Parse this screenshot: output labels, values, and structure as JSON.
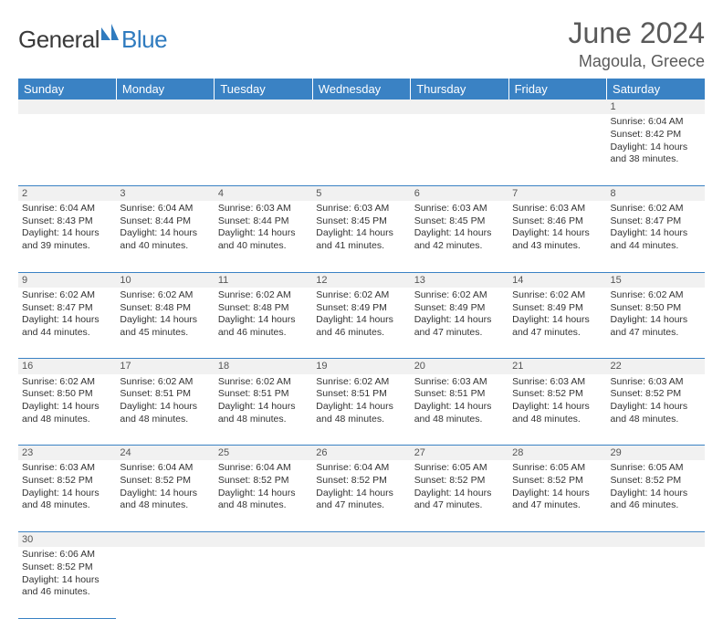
{
  "brand": {
    "part1": "General",
    "part2": "Blue"
  },
  "title": "June 2024",
  "location": "Magoula, Greece",
  "colors": {
    "header_bg": "#3a82c4",
    "header_text": "#ffffff",
    "daynum_bg": "#f1f1f1",
    "border": "#3a82c4",
    "title_color": "#5a5a5a",
    "logo_blue": "#2f7bbf"
  },
  "weekdays": [
    "Sunday",
    "Monday",
    "Tuesday",
    "Wednesday",
    "Thursday",
    "Friday",
    "Saturday"
  ],
  "weeks": [
    [
      null,
      null,
      null,
      null,
      null,
      null,
      {
        "d": "1",
        "sr": "Sunrise: 6:04 AM",
        "ss": "Sunset: 8:42 PM",
        "dl1": "Daylight: 14 hours",
        "dl2": "and 38 minutes."
      }
    ],
    [
      {
        "d": "2",
        "sr": "Sunrise: 6:04 AM",
        "ss": "Sunset: 8:43 PM",
        "dl1": "Daylight: 14 hours",
        "dl2": "and 39 minutes."
      },
      {
        "d": "3",
        "sr": "Sunrise: 6:04 AM",
        "ss": "Sunset: 8:44 PM",
        "dl1": "Daylight: 14 hours",
        "dl2": "and 40 minutes."
      },
      {
        "d": "4",
        "sr": "Sunrise: 6:03 AM",
        "ss": "Sunset: 8:44 PM",
        "dl1": "Daylight: 14 hours",
        "dl2": "and 40 minutes."
      },
      {
        "d": "5",
        "sr": "Sunrise: 6:03 AM",
        "ss": "Sunset: 8:45 PM",
        "dl1": "Daylight: 14 hours",
        "dl2": "and 41 minutes."
      },
      {
        "d": "6",
        "sr": "Sunrise: 6:03 AM",
        "ss": "Sunset: 8:45 PM",
        "dl1": "Daylight: 14 hours",
        "dl2": "and 42 minutes."
      },
      {
        "d": "7",
        "sr": "Sunrise: 6:03 AM",
        "ss": "Sunset: 8:46 PM",
        "dl1": "Daylight: 14 hours",
        "dl2": "and 43 minutes."
      },
      {
        "d": "8",
        "sr": "Sunrise: 6:02 AM",
        "ss": "Sunset: 8:47 PM",
        "dl1": "Daylight: 14 hours",
        "dl2": "and 44 minutes."
      }
    ],
    [
      {
        "d": "9",
        "sr": "Sunrise: 6:02 AM",
        "ss": "Sunset: 8:47 PM",
        "dl1": "Daylight: 14 hours",
        "dl2": "and 44 minutes."
      },
      {
        "d": "10",
        "sr": "Sunrise: 6:02 AM",
        "ss": "Sunset: 8:48 PM",
        "dl1": "Daylight: 14 hours",
        "dl2": "and 45 minutes."
      },
      {
        "d": "11",
        "sr": "Sunrise: 6:02 AM",
        "ss": "Sunset: 8:48 PM",
        "dl1": "Daylight: 14 hours",
        "dl2": "and 46 minutes."
      },
      {
        "d": "12",
        "sr": "Sunrise: 6:02 AM",
        "ss": "Sunset: 8:49 PM",
        "dl1": "Daylight: 14 hours",
        "dl2": "and 46 minutes."
      },
      {
        "d": "13",
        "sr": "Sunrise: 6:02 AM",
        "ss": "Sunset: 8:49 PM",
        "dl1": "Daylight: 14 hours",
        "dl2": "and 47 minutes."
      },
      {
        "d": "14",
        "sr": "Sunrise: 6:02 AM",
        "ss": "Sunset: 8:49 PM",
        "dl1": "Daylight: 14 hours",
        "dl2": "and 47 minutes."
      },
      {
        "d": "15",
        "sr": "Sunrise: 6:02 AM",
        "ss": "Sunset: 8:50 PM",
        "dl1": "Daylight: 14 hours",
        "dl2": "and 47 minutes."
      }
    ],
    [
      {
        "d": "16",
        "sr": "Sunrise: 6:02 AM",
        "ss": "Sunset: 8:50 PM",
        "dl1": "Daylight: 14 hours",
        "dl2": "and 48 minutes."
      },
      {
        "d": "17",
        "sr": "Sunrise: 6:02 AM",
        "ss": "Sunset: 8:51 PM",
        "dl1": "Daylight: 14 hours",
        "dl2": "and 48 minutes."
      },
      {
        "d": "18",
        "sr": "Sunrise: 6:02 AM",
        "ss": "Sunset: 8:51 PM",
        "dl1": "Daylight: 14 hours",
        "dl2": "and 48 minutes."
      },
      {
        "d": "19",
        "sr": "Sunrise: 6:02 AM",
        "ss": "Sunset: 8:51 PM",
        "dl1": "Daylight: 14 hours",
        "dl2": "and 48 minutes."
      },
      {
        "d": "20",
        "sr": "Sunrise: 6:03 AM",
        "ss": "Sunset: 8:51 PM",
        "dl1": "Daylight: 14 hours",
        "dl2": "and 48 minutes."
      },
      {
        "d": "21",
        "sr": "Sunrise: 6:03 AM",
        "ss": "Sunset: 8:52 PM",
        "dl1": "Daylight: 14 hours",
        "dl2": "and 48 minutes."
      },
      {
        "d": "22",
        "sr": "Sunrise: 6:03 AM",
        "ss": "Sunset: 8:52 PM",
        "dl1": "Daylight: 14 hours",
        "dl2": "and 48 minutes."
      }
    ],
    [
      {
        "d": "23",
        "sr": "Sunrise: 6:03 AM",
        "ss": "Sunset: 8:52 PM",
        "dl1": "Daylight: 14 hours",
        "dl2": "and 48 minutes."
      },
      {
        "d": "24",
        "sr": "Sunrise: 6:04 AM",
        "ss": "Sunset: 8:52 PM",
        "dl1": "Daylight: 14 hours",
        "dl2": "and 48 minutes."
      },
      {
        "d": "25",
        "sr": "Sunrise: 6:04 AM",
        "ss": "Sunset: 8:52 PM",
        "dl1": "Daylight: 14 hours",
        "dl2": "and 48 minutes."
      },
      {
        "d": "26",
        "sr": "Sunrise: 6:04 AM",
        "ss": "Sunset: 8:52 PM",
        "dl1": "Daylight: 14 hours",
        "dl2": "and 47 minutes."
      },
      {
        "d": "27",
        "sr": "Sunrise: 6:05 AM",
        "ss": "Sunset: 8:52 PM",
        "dl1": "Daylight: 14 hours",
        "dl2": "and 47 minutes."
      },
      {
        "d": "28",
        "sr": "Sunrise: 6:05 AM",
        "ss": "Sunset: 8:52 PM",
        "dl1": "Daylight: 14 hours",
        "dl2": "and 47 minutes."
      },
      {
        "d": "29",
        "sr": "Sunrise: 6:05 AM",
        "ss": "Sunset: 8:52 PM",
        "dl1": "Daylight: 14 hours",
        "dl2": "and 46 minutes."
      }
    ],
    [
      {
        "d": "30",
        "sr": "Sunrise: 6:06 AM",
        "ss": "Sunset: 8:52 PM",
        "dl1": "Daylight: 14 hours",
        "dl2": "and 46 minutes."
      },
      null,
      null,
      null,
      null,
      null,
      null
    ]
  ]
}
